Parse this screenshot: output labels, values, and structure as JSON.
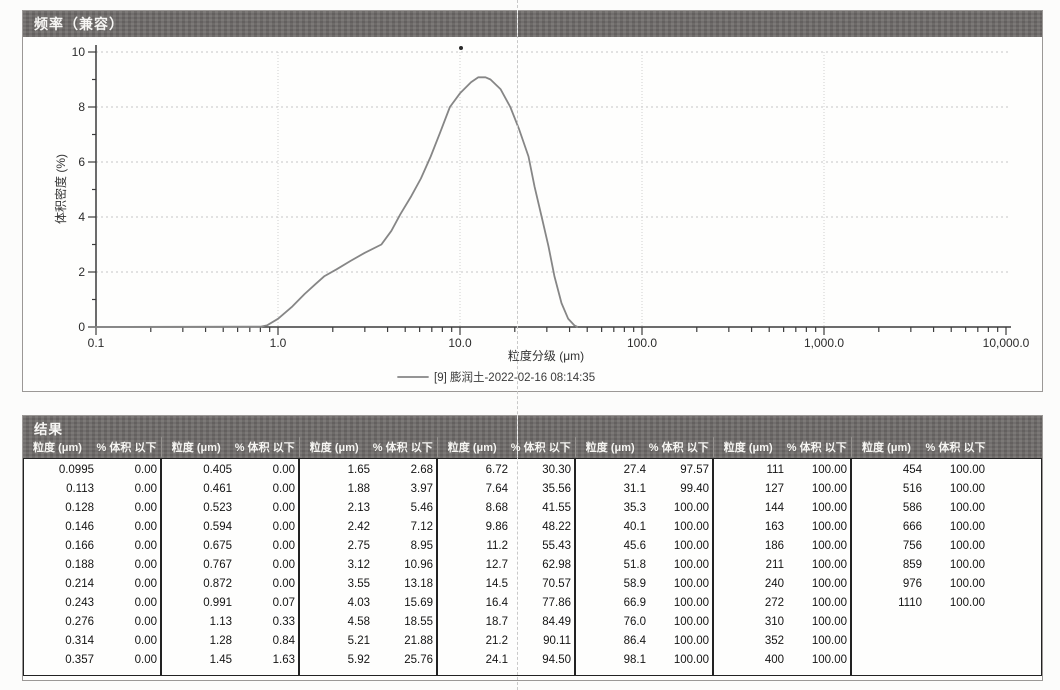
{
  "chart_panel": {
    "title": "频率（兼容）",
    "legend_label": "[9] 膨润土-2022-02-16 08:14:35",
    "chart_data": {
      "type": "line",
      "title": "频率（兼容）",
      "xlabel": "粒度分级 (μm)",
      "ylabel": "体积密度 (%)",
      "x_scale": "log",
      "xlim": [
        0.1,
        10000
      ],
      "ylim": [
        0,
        10
      ],
      "x_tick_values": [
        0.1,
        1,
        10,
        100,
        1000,
        10000
      ],
      "x_tick_labels": [
        "0.1",
        "1.0",
        "10.0",
        "100.0",
        "1,000.0",
        "10,000.0"
      ],
      "y_ticks": [
        0,
        2,
        4,
        6,
        8,
        10
      ],
      "grid": true,
      "legend_position": "bottom",
      "series": [
        {
          "name": "[9] 膨润土-2022-02-16 08:14:35",
          "color": "#868686",
          "points": [
            [
              0.1,
              0
            ],
            [
              0.8,
              0.01
            ],
            [
              0.87,
              0.06
            ],
            [
              1.0,
              0.3
            ],
            [
              1.2,
              0.75
            ],
            [
              1.4,
              1.2
            ],
            [
              1.6,
              1.55
            ],
            [
              1.8,
              1.85
            ],
            [
              2.1,
              2.1
            ],
            [
              2.5,
              2.4
            ],
            [
              3.0,
              2.7
            ],
            [
              3.7,
              3.0
            ],
            [
              4.2,
              3.5
            ],
            [
              4.7,
              4.1
            ],
            [
              5.4,
              4.76
            ],
            [
              6.1,
              5.4
            ],
            [
              6.9,
              6.2
            ],
            [
              7.8,
              7.1
            ],
            [
              8.8,
              8.0
            ],
            [
              10.0,
              8.5
            ],
            [
              11.5,
              8.9
            ],
            [
              12.6,
              9.08
            ],
            [
              13.8,
              9.08
            ],
            [
              14.7,
              9.0
            ],
            [
              16.7,
              8.65
            ],
            [
              18.9,
              8.0
            ],
            [
              21.1,
              7.2
            ],
            [
              23.8,
              6.2
            ],
            [
              25.7,
              5.1
            ],
            [
              28.1,
              4.0
            ],
            [
              30.6,
              2.95
            ],
            [
              33.0,
              1.85
            ],
            [
              36.1,
              0.87
            ],
            [
              39.3,
              0.3
            ],
            [
              42.6,
              0.05
            ],
            [
              44.0,
              0.01
            ]
          ]
        }
      ]
    }
  },
  "results_panel": {
    "title": "结果",
    "col_headers": {
      "size": "粒度 (μm)",
      "pct": "% 体积 以下"
    },
    "groups": [
      {
        "rows": [
          [
            "0.0995",
            "0.00"
          ],
          [
            "0.113",
            "0.00"
          ],
          [
            "0.128",
            "0.00"
          ],
          [
            "0.146",
            "0.00"
          ],
          [
            "0.166",
            "0.00"
          ],
          [
            "0.188",
            "0.00"
          ],
          [
            "0.214",
            "0.00"
          ],
          [
            "0.243",
            "0.00"
          ],
          [
            "0.276",
            "0.00"
          ],
          [
            "0.314",
            "0.00"
          ],
          [
            "0.357",
            "0.00"
          ]
        ]
      },
      {
        "rows": [
          [
            "0.405",
            "0.00"
          ],
          [
            "0.461",
            "0.00"
          ],
          [
            "0.523",
            "0.00"
          ],
          [
            "0.594",
            "0.00"
          ],
          [
            "0.675",
            "0.00"
          ],
          [
            "0.767",
            "0.00"
          ],
          [
            "0.872",
            "0.00"
          ],
          [
            "0.991",
            "0.07"
          ],
          [
            "1.13",
            "0.33"
          ],
          [
            "1.28",
            "0.84"
          ],
          [
            "1.45",
            "1.63"
          ]
        ]
      },
      {
        "rows": [
          [
            "1.65",
            "2.68"
          ],
          [
            "1.88",
            "3.97"
          ],
          [
            "2.13",
            "5.46"
          ],
          [
            "2.42",
            "7.12"
          ],
          [
            "2.75",
            "8.95"
          ],
          [
            "3.12",
            "10.96"
          ],
          [
            "3.55",
            "13.18"
          ],
          [
            "4.03",
            "15.69"
          ],
          [
            "4.58",
            "18.55"
          ],
          [
            "5.21",
            "21.88"
          ],
          [
            "5.92",
            "25.76"
          ]
        ]
      },
      {
        "rows": [
          [
            "6.72",
            "30.30"
          ],
          [
            "7.64",
            "35.56"
          ],
          [
            "8.68",
            "41.55"
          ],
          [
            "9.86",
            "48.22"
          ],
          [
            "11.2",
            "55.43"
          ],
          [
            "12.7",
            "62.98"
          ],
          [
            "14.5",
            "70.57"
          ],
          [
            "16.4",
            "77.86"
          ],
          [
            "18.7",
            "84.49"
          ],
          [
            "21.2",
            "90.11"
          ],
          [
            "24.1",
            "94.50"
          ]
        ]
      },
      {
        "rows": [
          [
            "27.4",
            "97.57"
          ],
          [
            "31.1",
            "99.40"
          ],
          [
            "35.3",
            "100.00"
          ],
          [
            "40.1",
            "100.00"
          ],
          [
            "45.6",
            "100.00"
          ],
          [
            "51.8",
            "100.00"
          ],
          [
            "58.9",
            "100.00"
          ],
          [
            "66.9",
            "100.00"
          ],
          [
            "76.0",
            "100.00"
          ],
          [
            "86.4",
            "100.00"
          ],
          [
            "98.1",
            "100.00"
          ]
        ]
      },
      {
        "rows": [
          [
            "111",
            "100.00"
          ],
          [
            "127",
            "100.00"
          ],
          [
            "144",
            "100.00"
          ],
          [
            "163",
            "100.00"
          ],
          [
            "186",
            "100.00"
          ],
          [
            "211",
            "100.00"
          ],
          [
            "240",
            "100.00"
          ],
          [
            "272",
            "100.00"
          ],
          [
            "310",
            "100.00"
          ],
          [
            "352",
            "100.00"
          ],
          [
            "400",
            "100.00"
          ]
        ]
      },
      {
        "rows": [
          [
            "454",
            "100.00"
          ],
          [
            "516",
            "100.00"
          ],
          [
            "586",
            "100.00"
          ],
          [
            "666",
            "100.00"
          ],
          [
            "756",
            "100.00"
          ],
          [
            "859",
            "100.00"
          ],
          [
            "976",
            "100.00"
          ],
          [
            "1110",
            "100.00"
          ]
        ]
      }
    ]
  }
}
